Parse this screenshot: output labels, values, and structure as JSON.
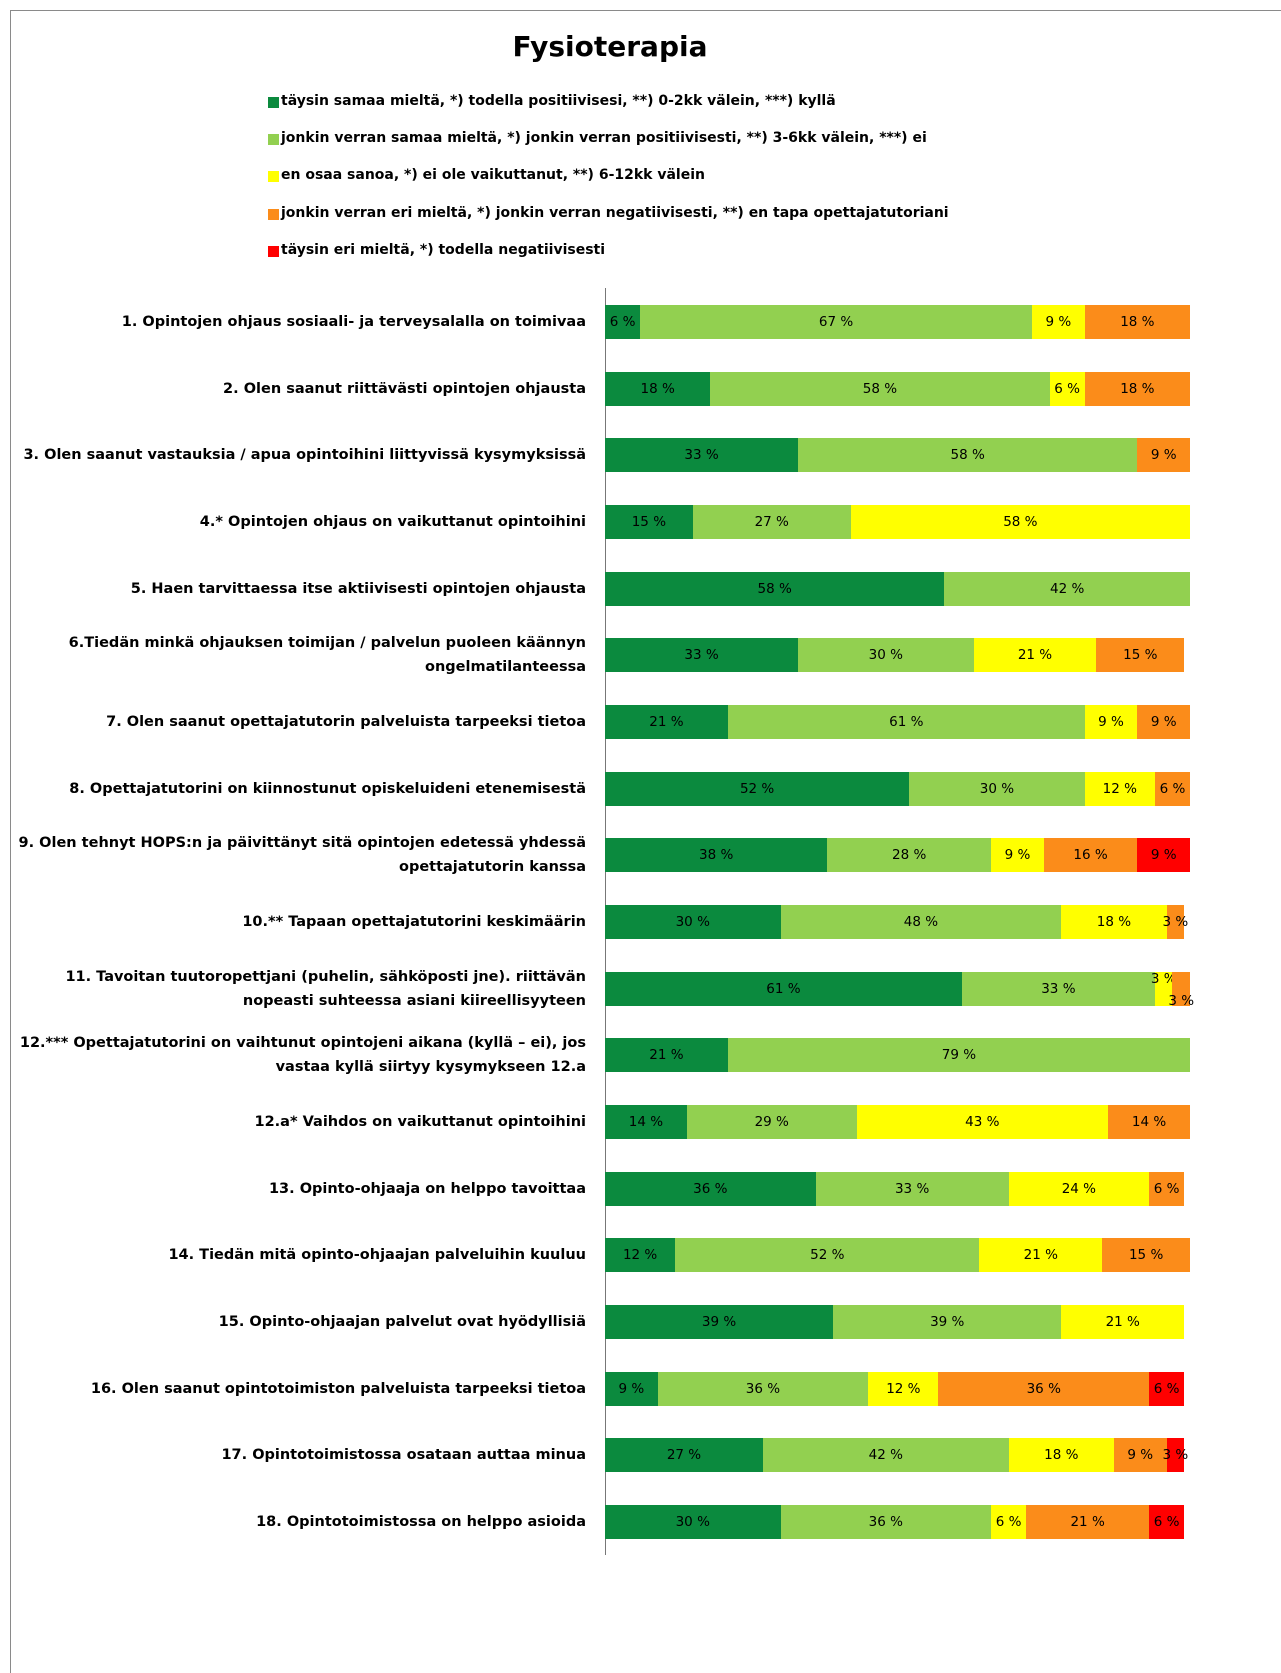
{
  "chart_data": {
    "type": "bar",
    "orientation": "horizontal",
    "stacked": true,
    "title": "Fysioterapia",
    "categories": [
      "1. Opintojen ohjaus sosiaali-  ja terveysalalla on toimivaa",
      "2. Olen saanut riittävästi opintojen ohjausta",
      "3. Olen saanut vastauksia  / apua opintoihini liittyvissä kysymyksissä",
      "4.* Opintojen ohjaus on vaikuttanut opintoihini",
      "5. Haen tarvittaessa itse aktiivisesti opintojen ohjausta",
      "6.Tiedän minkä ohjauksen toimijan / palvelun puoleen käännyn\nongelmatilanteessa",
      "7. Olen saanut opettajatutorin palveluista tarpeeksi tietoa",
      "8. Opettajatutorini on kiinnostunut opiskeluideni etenemisestä",
      "9. Olen tehnyt HOPS:n ja päivittänyt sitä opintojen edetessä yhdessä\nopettajatutorin kanssa",
      "10.** Tapaan opettajatutorini keskimäärin",
      "11. Tavoitan tuutoropettjani (puhelin, sähköposti jne). riittävän\nnopeasti suhteessa asiani kiireellisyyteen",
      "12.*** Opettajatutorini on vaihtunut opintojeni aikana (kyllä – ei), jos\nvastaa kyllä siirtyy kysymykseen 12.a",
      "12.a* Vaihdos on vaikuttanut opintoihini",
      "13. Opinto-ohjaaja on helppo tavoittaa",
      "14. Tiedän mitä opinto-ohjaajan  palveluihin kuuluu",
      "15. Opinto-ohjaajan palvelut ovat hyödyllisiä",
      "16. Olen saanut opintotoimiston palveluista tarpeeksi tietoa",
      "17. Opintotoimistossa osataan auttaa minua",
      "18. Opintotoimistossa on helppo asioida"
    ],
    "xlim": [
      0,
      100
    ],
    "series": [
      {
        "name": "täysin samaa mieltä, *) todella positiivisesi, **) 0-2kk välein, ***) kyllä",
        "color": "#0b8a3e",
        "values": [
          6,
          18,
          33,
          15,
          58,
          33,
          21,
          52,
          38,
          30,
          61,
          21,
          14,
          36,
          12,
          39,
          9,
          27,
          30
        ],
        "value_labels": [
          "6 %",
          "18 %",
          "33 %",
          "15 %",
          "58 %",
          "33 %",
          "21 %",
          "52 %",
          "38 %",
          "30 %",
          "61 %",
          "21 %",
          "14 %",
          "36 %",
          "12 %",
          "39 %",
          "9 %",
          "27 %",
          "30 %"
        ]
      },
      {
        "name": "jonkin verran samaa mieltä, *) jonkin verran positiivisesti, **) 3-6kk välein, ***) ei",
        "color": "#92d050",
        "values": [
          67,
          58,
          58,
          27,
          42,
          30,
          61,
          30,
          28,
          48,
          33,
          79,
          29,
          33,
          52,
          39,
          36,
          42,
          36
        ],
        "value_labels": [
          "67 %",
          "58 %",
          "58 %",
          "27 %",
          "42 %",
          "30 %",
          "61 %",
          "30 %",
          "28 %",
          "48 %",
          "33 %",
          "79 %",
          "29 %",
          "33 %",
          "52 %",
          "39 %",
          "36 %",
          "42 %",
          "36 %"
        ]
      },
      {
        "name": "en osaa sanoa, *) ei ole vaikuttanut, **) 6-12kk  välein",
        "color": "#ffff00",
        "values": [
          9,
          6,
          null,
          58,
          null,
          21,
          9,
          12,
          9,
          18,
          3,
          null,
          43,
          24,
          21,
          21,
          12,
          18,
          6
        ],
        "value_labels": [
          "9 %",
          "6 %",
          null,
          "58 %",
          null,
          "21 %",
          "9 %",
          "12 %",
          "9 %",
          "18 %",
          "3 %",
          null,
          "43 %",
          "24 %",
          "21 %",
          "21 %",
          "12 %",
          "18 %",
          "6 %"
        ]
      },
      {
        "name": "jonkin verran eri mieltä, *) jonkin verran negatiivisesti, **) en tapa opettajatutoriani",
        "color": "#fb8c1a",
        "values": [
          18,
          18,
          9,
          null,
          null,
          15,
          9,
          6,
          16,
          3,
          3,
          null,
          14,
          6,
          15,
          null,
          36,
          9,
          21
        ],
        "value_labels": [
          "18 %",
          "18 %",
          "9 %",
          null,
          null,
          "15 %",
          "9 %",
          "6 %",
          "16 %",
          "3 %",
          "3 %",
          null,
          "14 %",
          "6 %",
          "15 %",
          null,
          "36 %",
          "9 %",
          "21 %"
        ]
      },
      {
        "name": "täysin eri mieltä, *) todella negatiivisesti",
        "color": "#ff0000",
        "values": [
          null,
          null,
          null,
          null,
          null,
          null,
          null,
          null,
          9,
          null,
          null,
          null,
          null,
          null,
          null,
          null,
          6,
          3,
          6
        ],
        "value_labels": [
          null,
          null,
          null,
          null,
          null,
          null,
          null,
          null,
          "9 %",
          null,
          null,
          null,
          null,
          null,
          null,
          null,
          "6 %",
          "3 %",
          "6 %"
        ]
      }
    ]
  }
}
